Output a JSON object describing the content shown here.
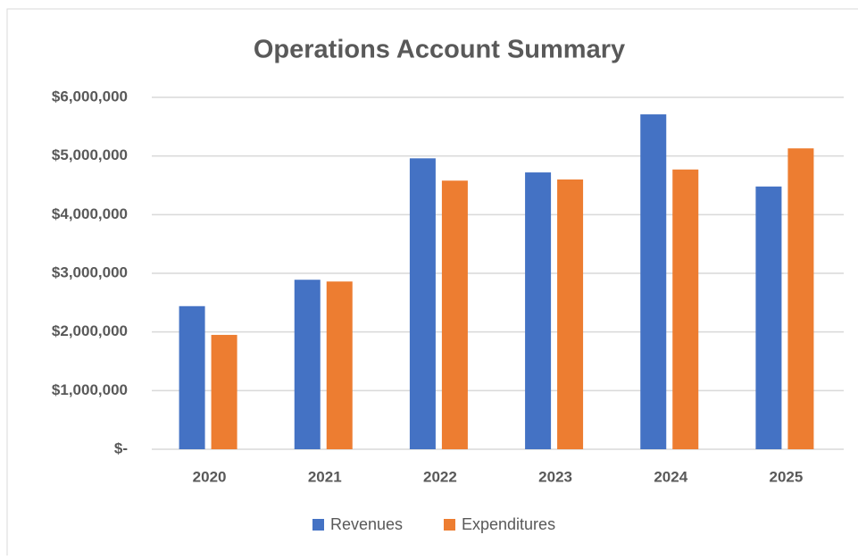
{
  "chart_data": {
    "type": "bar",
    "title": "Operations Account Summary",
    "categories": [
      "2020",
      "2021",
      "2022",
      "2023",
      "2024",
      "2025"
    ],
    "series": [
      {
        "name": "Revenues",
        "color": "#4472c4",
        "values": [
          2440000,
          2890000,
          4960000,
          4720000,
          5710000,
          4480000
        ]
      },
      {
        "name": "Expenditures",
        "color": "#ed7d31",
        "values": [
          1950000,
          2860000,
          4580000,
          4600000,
          4770000,
          5130000
        ]
      }
    ],
    "ylim": [
      0,
      6000000
    ],
    "yticks": [
      {
        "value": 0,
        "label": "$-"
      },
      {
        "value": 1000000,
        "label": "$1,000,000"
      },
      {
        "value": 2000000,
        "label": "$2,000,000"
      },
      {
        "value": 3000000,
        "label": "$3,000,000"
      },
      {
        "value": 4000000,
        "label": "$4,000,000"
      },
      {
        "value": 5000000,
        "label": "$5,000,000"
      },
      {
        "value": 6000000,
        "label": "$6,000,000"
      }
    ],
    "grid": true,
    "legend": "bottom"
  }
}
